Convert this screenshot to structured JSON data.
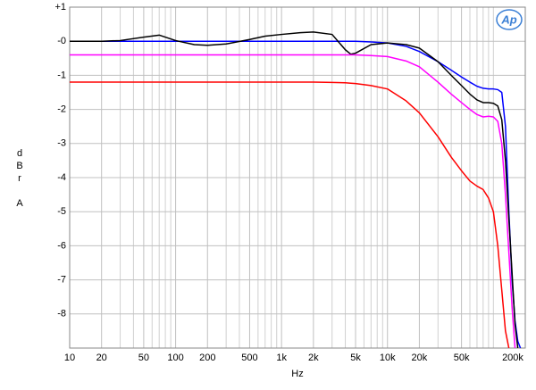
{
  "chart_data": {
    "type": "line",
    "xlabel": "Hz",
    "ylabel": "dBr A",
    "logo": "Ap",
    "xscale": "log",
    "grid": true,
    "xlim": [
      10,
      200000
    ],
    "ylim": [
      -9,
      1
    ],
    "xticks": [
      10,
      20,
      50,
      100,
      200,
      500,
      {
        "value": 1000,
        "label": "1k"
      },
      {
        "value": 2000,
        "label": "2k"
      },
      {
        "value": 5000,
        "label": "5k"
      },
      {
        "value": 10000,
        "label": "10k"
      },
      {
        "value": 20000,
        "label": "20k"
      },
      {
        "value": 50000,
        "label": "50k"
      },
      {
        "value": 200000,
        "label": "200k"
      }
    ],
    "yticks": [
      {
        "value": 1,
        "label": "+1"
      },
      {
        "value": 0,
        "label": "-0"
      },
      -1,
      -2,
      -3,
      -4,
      -5,
      -6,
      -7,
      -8
    ],
    "x": [
      10,
      20,
      30,
      50,
      70,
      100,
      150,
      200,
      300,
      500,
      700,
      1000,
      1500,
      2000,
      3000,
      4000,
      4500,
      5000,
      7000,
      10000,
      15000,
      20000,
      30000,
      40000,
      50000,
      60000,
      70000,
      80000,
      90000,
      100000,
      110000,
      120000,
      130000,
      140000,
      150000,
      160000,
      170000,
      180000
    ],
    "series": [
      {
        "color": "#0000ff",
        "values": [
          0,
          0,
          0,
          0,
          0,
          0,
          0,
          0,
          0,
          0,
          0,
          0,
          0,
          0,
          0,
          0,
          0,
          0,
          -0.02,
          -0.05,
          -0.15,
          -0.3,
          -0.6,
          -0.85,
          -1.05,
          -1.2,
          -1.32,
          -1.38,
          -1.4,
          -1.4,
          -1.42,
          -1.5,
          -2.5,
          -5,
          -7,
          -8.2,
          -8.8,
          -9
        ]
      },
      {
        "color": "#000000",
        "values": [
          0,
          0,
          0.02,
          0.12,
          0.18,
          0.02,
          -0.1,
          -0.12,
          -0.08,
          0.05,
          0.15,
          0.2,
          0.25,
          0.27,
          0.2,
          -0.25,
          -0.38,
          -0.35,
          -0.1,
          -0.05,
          -0.1,
          -0.2,
          -0.6,
          -1,
          -1.3,
          -1.55,
          -1.72,
          -1.8,
          -1.8,
          -1.82,
          -1.9,
          -2.3,
          -3.5,
          -5.2,
          -6.8,
          -8.3,
          -9,
          null
        ]
      },
      {
        "color": "#ff00ff",
        "values": [
          -0.4,
          -0.4,
          -0.4,
          -0.4,
          -0.4,
          -0.4,
          -0.4,
          -0.4,
          -0.4,
          -0.4,
          -0.4,
          -0.4,
          -0.4,
          -0.4,
          -0.4,
          -0.4,
          -0.4,
          -0.4,
          -0.42,
          -0.45,
          -0.58,
          -0.75,
          -1.2,
          -1.55,
          -1.8,
          -2,
          -2.15,
          -2.22,
          -2.2,
          -2.22,
          -2.35,
          -3,
          -4.5,
          -6.2,
          -7.8,
          -9,
          null,
          null
        ]
      },
      {
        "color": "#ff0000",
        "values": [
          -1.2,
          -1.2,
          -1.2,
          -1.2,
          -1.2,
          -1.2,
          -1.2,
          -1.2,
          -1.2,
          -1.2,
          -1.2,
          -1.2,
          -1.2,
          -1.2,
          -1.21,
          -1.22,
          -1.23,
          -1.24,
          -1.3,
          -1.4,
          -1.75,
          -2.1,
          -2.8,
          -3.4,
          -3.8,
          -4.1,
          -4.25,
          -4.35,
          -4.6,
          -5,
          -6,
          -7.3,
          -8.5,
          -9,
          null,
          null,
          null,
          null
        ]
      }
    ]
  }
}
